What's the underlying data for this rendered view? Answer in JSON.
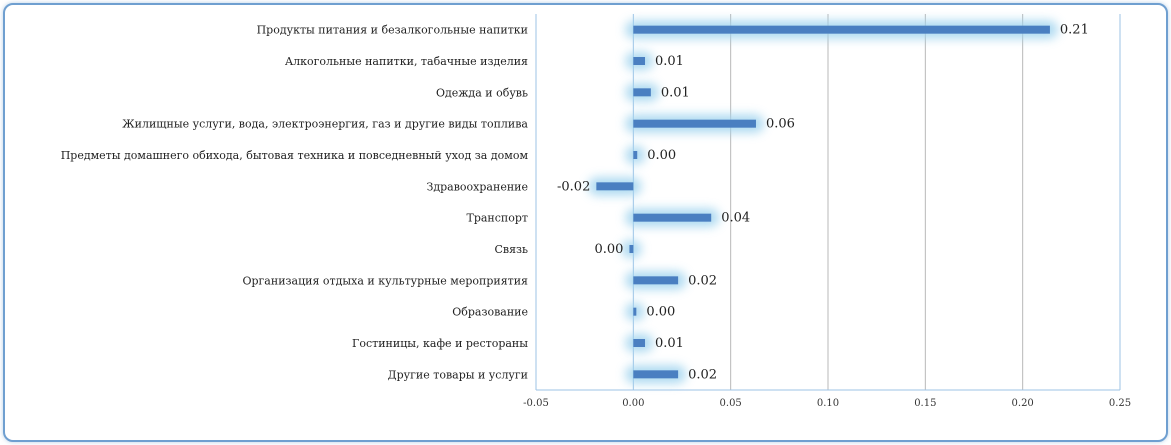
{
  "chart_data": {
    "type": "bar",
    "orientation": "horizontal",
    "categories": [
      "Продукты питания и безалкогольные напитки",
      "Алкогольные напитки, табачные изделия",
      "Одежда и обувь",
      "Жилищные услуги, вода, электроэнергия, газ и другие виды топлива",
      "Предметы домашнего обихода, бытовая техника и повседневный уход за домом",
      "Здравоохранение",
      "Транспорт",
      "Связь",
      "Организация отдыха и культурные мероприятия",
      "Образование",
      "Гостиницы, кафе и рестораны",
      "Другие товары и услуги"
    ],
    "values": [
      0.214,
      0.006,
      0.009,
      0.063,
      0.002,
      -0.019,
      0.04,
      -0.002,
      0.023,
      0.0,
      0.006,
      0.023
    ],
    "value_labels": [
      "0.21",
      "0.01",
      "0.01",
      "0.06",
      "0.00",
      "-0.02",
      "0.04",
      "0.00",
      "0.02",
      "0.00",
      "0.01",
      "0.02"
    ],
    "xlim": [
      -0.05,
      0.25
    ],
    "xticks": [
      "-0.05",
      "0.00",
      "0.05",
      "0.10",
      "0.15",
      "0.20",
      "0.25"
    ],
    "grid": true,
    "bar_color": "#4a7fc1",
    "glow_color": "#9fd3ee",
    "title": "",
    "xlabel": "",
    "ylabel": ""
  }
}
